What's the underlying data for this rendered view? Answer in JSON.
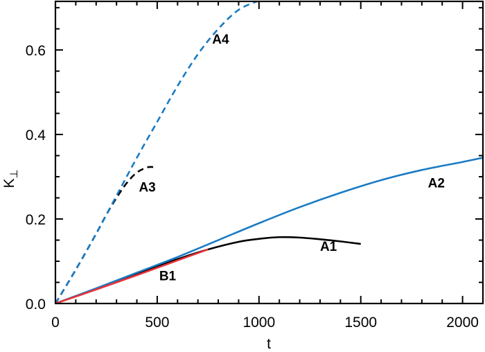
{
  "chart_data": {
    "type": "line",
    "title": "",
    "xlabel": "t",
    "ylabel": "K⊥",
    "xlim": [
      0,
      2100
    ],
    "ylim": [
      0.0,
      0.715
    ],
    "grid": false,
    "legend": "none (inline curve labels)",
    "x_ticks": [
      0,
      500,
      1000,
      1500,
      2000
    ],
    "x_tick_labels": [
      "0",
      "500",
      "1000",
      "1500",
      "2000"
    ],
    "y_ticks": [
      0.0,
      0.2,
      0.4,
      0.6
    ],
    "y_tick_labels": [
      "0.0",
      "0.2",
      "0.4",
      "0.6"
    ],
    "series": [
      {
        "name": "A1",
        "color": "#000000",
        "style": "solid",
        "x": [
          0,
          200,
          400,
          600,
          750,
          900,
          1000,
          1100,
          1200,
          1300,
          1400,
          1500
        ],
        "y": [
          0.0,
          0.035,
          0.07,
          0.105,
          0.128,
          0.146,
          0.153,
          0.157,
          0.156,
          0.152,
          0.147,
          0.141
        ],
        "label_pos": {
          "x": 1300,
          "y": 0.125
        }
      },
      {
        "name": "A2",
        "color": "#1a7bc4",
        "style": "solid",
        "x": [
          0,
          200,
          400,
          600,
          800,
          1000,
          1200,
          1400,
          1600,
          1800,
          2000,
          2100
        ],
        "y": [
          0.0,
          0.036,
          0.073,
          0.11,
          0.15,
          0.19,
          0.228,
          0.262,
          0.292,
          0.316,
          0.335,
          0.345
        ],
        "label_pos": {
          "x": 1830,
          "y": 0.275
        }
      },
      {
        "name": "A3",
        "color": "#000000",
        "style": "dashed",
        "x": [
          0,
          100,
          200,
          250,
          300,
          350,
          400,
          450,
          480
        ],
        "y": [
          0.0,
          0.08,
          0.165,
          0.21,
          0.25,
          0.285,
          0.31,
          0.322,
          0.323
        ],
        "label_pos": {
          "x": 410,
          "y": 0.265
        }
      },
      {
        "name": "A4",
        "color": "#1a7bc4",
        "style": "dashed",
        "x": [
          0,
          100,
          200,
          300,
          400,
          500,
          600,
          700,
          800,
          900,
          990
        ],
        "y": [
          0.0,
          0.08,
          0.165,
          0.255,
          0.345,
          0.43,
          0.515,
          0.59,
          0.65,
          0.695,
          0.715
        ],
        "label_pos": {
          "x": 770,
          "y": 0.615
        }
      },
      {
        "name": "B1",
        "color": "#e8343a",
        "style": "solid",
        "x": [
          0,
          200,
          400,
          600,
          750
        ],
        "y": [
          0.0,
          0.033,
          0.067,
          0.102,
          0.128
        ],
        "label_pos": {
          "x": 510,
          "y": 0.055
        }
      }
    ]
  },
  "axes": {
    "xlabel": "t",
    "ylabel_main": "K",
    "ylabel_sub": "⊥"
  }
}
